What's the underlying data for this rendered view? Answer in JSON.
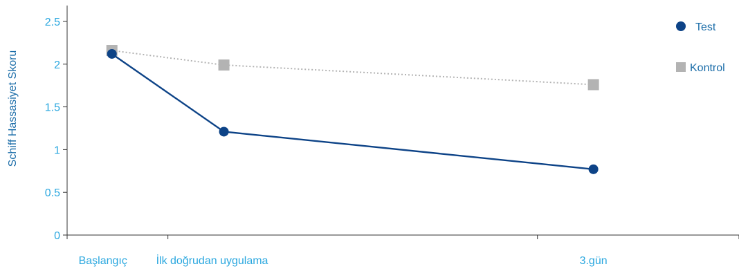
{
  "chart_data": {
    "type": "line",
    "title": "",
    "xlabel": "",
    "ylabel": "Schiff Hassasiyet Skoru",
    "categories": [
      "Başlangıç",
      "İlk doğrudan uygulama",
      "3.gün"
    ],
    "x": [
      0,
      1,
      4.3
    ],
    "xlim": [
      -0.4,
      5.6
    ],
    "ylim": [
      0,
      2.5
    ],
    "yticks": [
      "0",
      "0.5",
      "1",
      "1.5",
      "2",
      "2.5"
    ],
    "grid": false,
    "legend": "top-right",
    "series": [
      {
        "name": "Test",
        "values": [
          2.12,
          1.21,
          0.77
        ],
        "color": "#0d4387",
        "marker": "circle",
        "line": "solid"
      },
      {
        "name": "Kontrol",
        "values": [
          2.16,
          1.99,
          1.76
        ],
        "color": "#b3b3b3",
        "marker": "square",
        "line": "dotted"
      }
    ],
    "colors": {
      "axis": "#333333",
      "tick_text": "#2aa7df",
      "ylabel_text": "#1a6ca8"
    }
  }
}
